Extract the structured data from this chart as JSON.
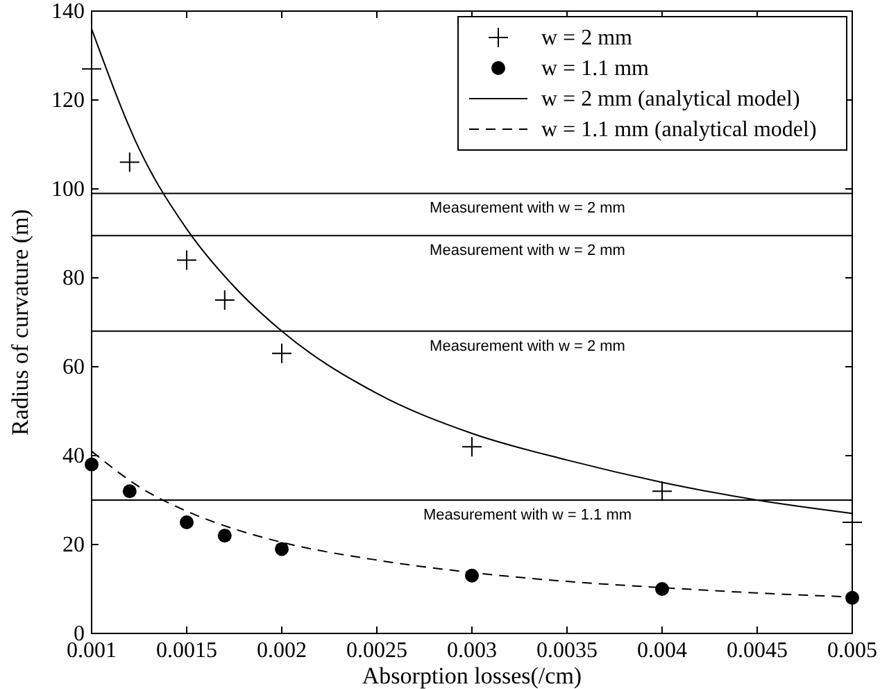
{
  "chart_data": {
    "type": "scatter",
    "xlabel": "Absorption losses(/cm)",
    "ylabel": "Radius of curvature (m)",
    "xlim": [
      0.001,
      0.005
    ],
    "xticks": [
      0.001,
      0.0015,
      0.002,
      0.0025,
      0.003,
      0.0035,
      0.004,
      0.0045,
      0.005
    ],
    "ylim": [
      0,
      140
    ],
    "yticks": [
      0,
      20,
      40,
      60,
      80,
      100,
      120,
      140
    ],
    "grid": false,
    "legend": "top right",
    "series": [
      {
        "name": "w = 2 mm",
        "marker": "cross",
        "color": "#000000",
        "x": [
          0.001,
          0.0012,
          0.0015,
          0.0017,
          0.002,
          0.003,
          0.004,
          0.005
        ],
        "values": [
          127,
          106,
          84,
          75,
          63,
          42,
          32,
          25
        ]
      },
      {
        "name": "w = 1.1 mm",
        "marker": "circle",
        "color": "#000000",
        "x": [
          0.001,
          0.0012,
          0.0015,
          0.0017,
          0.002,
          0.003,
          0.004,
          0.005
        ],
        "values": [
          38,
          32,
          25,
          22,
          19,
          13,
          10,
          8
        ]
      },
      {
        "name": "w = 2 mm (analytical model)",
        "type": "line",
        "marker": "none",
        "line_style": "solid",
        "color": "#000000",
        "x": [
          0.001,
          0.00125,
          0.0015,
          0.00175,
          0.002,
          0.0025,
          0.003,
          0.0035,
          0.004,
          0.0045,
          0.005
        ],
        "values": [
          136,
          109,
          91,
          78,
          68,
          54,
          45,
          39,
          34,
          30,
          27
        ]
      },
      {
        "name": "w = 1.1 mm (analytical model)",
        "type": "line",
        "marker": "none",
        "line_style": "dashed",
        "color": "#000000",
        "x": [
          0.001,
          0.00125,
          0.0015,
          0.00175,
          0.002,
          0.0025,
          0.003,
          0.0035,
          0.004,
          0.0045,
          0.005
        ],
        "values": [
          41,
          33,
          27.5,
          23.5,
          20.5,
          16.5,
          13.7,
          11.7,
          10.3,
          9.1,
          8.2
        ]
      }
    ],
    "ref_lines": [
      {
        "axis": "y",
        "value": 99,
        "color": "#000000"
      },
      {
        "axis": "y",
        "value": 89.5,
        "color": "#000000"
      },
      {
        "axis": "y",
        "value": 68,
        "color": "#000000"
      },
      {
        "axis": "y",
        "value": 30,
        "color": "#000000"
      }
    ],
    "annotations": [
      {
        "text": "Measurement with w = 2 mm",
        "y": 99
      },
      {
        "text": "Measurement with w = 2 mm",
        "y": 89.5
      },
      {
        "text": "Measurement with w = 2 mm",
        "y": 68
      },
      {
        "text": "Measurement with w = 1.1 mm",
        "y": 30
      }
    ]
  }
}
